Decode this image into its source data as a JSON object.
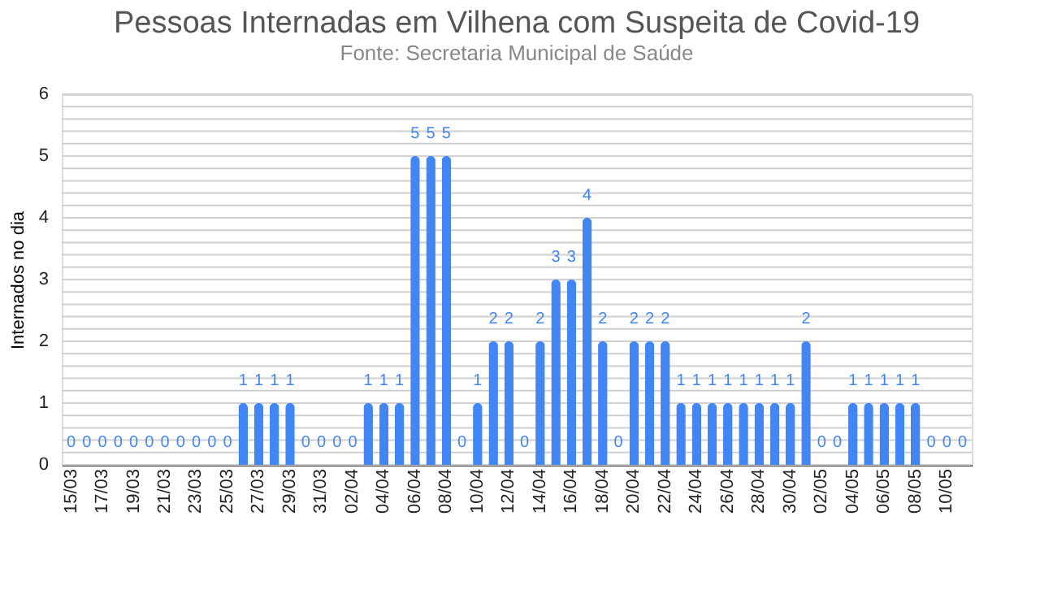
{
  "chart_data": {
    "type": "bar",
    "title": "Pessoas Internadas em Vilhena com Suspeita de Covid-19",
    "subtitle": "Fonte: Secretaria Municipal de Saúde",
    "ylabel": "Internados no dia",
    "categories": [
      "15/03",
      null,
      "17/03",
      null,
      "19/03",
      null,
      "21/03",
      null,
      "23/03",
      null,
      "25/03",
      null,
      "27/03",
      null,
      "29/03",
      null,
      "31/03",
      null,
      "02/04",
      null,
      "04/04",
      null,
      "06/04",
      null,
      "08/04",
      null,
      "10/04",
      null,
      "12/04",
      null,
      "14/04",
      null,
      "16/04",
      null,
      "18/04",
      null,
      "20/04",
      null,
      "22/04",
      null,
      "24/04",
      null,
      "26/04",
      null,
      "28/04",
      null,
      "30/04",
      null,
      "02/05",
      null,
      "04/05",
      null,
      "06/05",
      null,
      "08/05",
      null,
      "10/05",
      null
    ],
    "values": [
      0,
      0,
      0,
      0,
      0,
      0,
      0,
      0,
      0,
      0,
      0,
      1,
      1,
      1,
      1,
      0,
      0,
      0,
      0,
      1,
      1,
      1,
      5,
      5,
      5,
      0,
      1,
      2,
      2,
      0,
      2,
      3,
      3,
      4,
      2,
      0,
      2,
      2,
      2,
      1,
      1,
      1,
      1,
      1,
      1,
      1,
      1,
      2,
      0,
      0,
      1,
      1,
      1,
      1,
      1,
      0,
      0,
      0
    ],
    "color": "#4285f4",
    "data_labels": true,
    "ylim": [
      0,
      6
    ],
    "yticks": [
      0,
      {
        "value": 0.2,
        "label": null
      },
      {
        "value": 0.4,
        "label": null
      },
      {
        "value": 0.6,
        "label": null
      },
      {
        "value": 0.8,
        "label": null
      },
      1,
      {
        "value": 1.2,
        "label": null
      },
      {
        "value": 1.4,
        "label": null
      },
      {
        "value": 1.6,
        "label": null
      },
      {
        "value": 1.8,
        "label": null
      },
      2,
      {
        "value": 2.2,
        "label": null
      },
      {
        "value": 2.4,
        "label": null
      },
      {
        "value": 2.6,
        "label": null
      },
      {
        "value": 2.8,
        "label": null
      },
      3,
      {
        "value": 3.2,
        "label": null
      },
      {
        "value": 3.4,
        "label": null
      },
      {
        "value": 3.6,
        "label": null
      },
      {
        "value": 3.8,
        "label": null
      },
      4,
      {
        "value": 4.2,
        "label": null
      },
      {
        "value": 4.4,
        "label": null
      },
      {
        "value": 4.6,
        "label": null
      },
      {
        "value": 4.8,
        "label": null
      },
      5,
      {
        "value": 5.2,
        "label": null
      },
      {
        "value": 5.4,
        "label": null
      },
      {
        "value": 5.6,
        "label": null
      },
      {
        "value": 5.8,
        "label": null
      },
      6
    ],
    "grid": "y"
  }
}
